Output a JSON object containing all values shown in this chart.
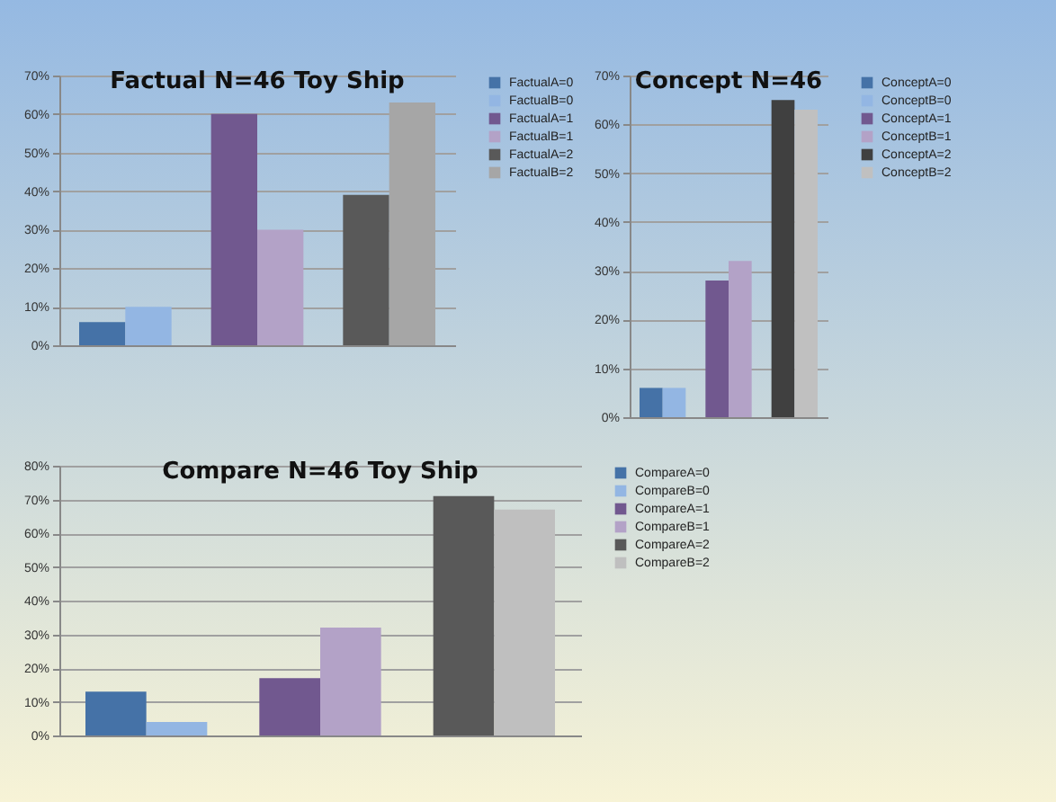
{
  "chart_data": [
    {
      "type": "bar",
      "title": "Factual  N=46 Toy Ship",
      "categories": [
        null,
        null,
        null
      ],
      "ylim": [
        0,
        70
      ],
      "yticks": [
        {
          "value": 0,
          "label": "0%"
        },
        {
          "value": 10,
          "label": "10%"
        },
        {
          "value": 20,
          "label": "20%"
        },
        {
          "value": 30,
          "label": "30%"
        },
        {
          "value": 40,
          "label": "40%"
        },
        {
          "value": 50,
          "label": "50%"
        },
        {
          "value": 60,
          "label": "60%"
        },
        {
          "value": 70,
          "label": "70%"
        }
      ],
      "grid": "y",
      "legend": "right",
      "series": [
        {
          "name": "FactualA=0",
          "color": "#4572a7",
          "values": [
            6,
            null,
            null
          ]
        },
        {
          "name": "FactualB=0",
          "color": "#93b6e3",
          "values": [
            10,
            null,
            null
          ]
        },
        {
          "name": "FactualA=1",
          "color": "#71588f",
          "values": [
            null,
            60,
            null
          ]
        },
        {
          "name": "FactualB=1",
          "color": "#b3a2c7",
          "values": [
            null,
            30,
            null
          ]
        },
        {
          "name": "FactualA=2",
          "color": "#595959",
          "values": [
            null,
            null,
            39
          ]
        },
        {
          "name": "FactualB=2",
          "color": "#a6a6a6",
          "values": [
            null,
            null,
            63
          ]
        }
      ]
    },
    {
      "type": "bar",
      "title": "Concept N=46",
      "categories": [
        null,
        null,
        null
      ],
      "ylim": [
        0,
        70
      ],
      "yticks": [
        {
          "value": 0,
          "label": "0%"
        },
        {
          "value": 10,
          "label": "10%"
        },
        {
          "value": 20,
          "label": "20%"
        },
        {
          "value": 30,
          "label": "30%"
        },
        {
          "value": 40,
          "label": "40%"
        },
        {
          "value": 50,
          "label": "50%"
        },
        {
          "value": 60,
          "label": "60%"
        },
        {
          "value": 70,
          "label": "70%"
        }
      ],
      "grid": "y",
      "legend": "right",
      "series": [
        {
          "name": "ConceptA=0",
          "color": "#4572a7",
          "values": [
            6,
            null,
            null
          ]
        },
        {
          "name": "ConceptB=0",
          "color": "#93b6e3",
          "values": [
            6,
            null,
            null
          ]
        },
        {
          "name": "ConceptA=1",
          "color": "#71588f",
          "values": [
            null,
            28,
            null
          ]
        },
        {
          "name": "ConceptB=1",
          "color": "#b3a2c7",
          "values": [
            null,
            32,
            null
          ]
        },
        {
          "name": "ConceptA=2",
          "color": "#404040",
          "values": [
            null,
            null,
            65
          ]
        },
        {
          "name": "ConceptB=2",
          "color": "#c0c0c0",
          "values": [
            null,
            null,
            63
          ]
        }
      ]
    },
    {
      "type": "bar",
      "title": "Compare N=46 Toy Ship",
      "categories": [
        null,
        null,
        null
      ],
      "ylim": [
        0,
        80
      ],
      "yticks": [
        {
          "value": 0,
          "label": "0%"
        },
        {
          "value": 10,
          "label": "10%"
        },
        {
          "value": 20,
          "label": "20%"
        },
        {
          "value": 30,
          "label": "30%"
        },
        {
          "value": 40,
          "label": "40%"
        },
        {
          "value": 50,
          "label": "50%"
        },
        {
          "value": 60,
          "label": "60%"
        },
        {
          "value": 70,
          "label": "70%"
        },
        {
          "value": 80,
          "label": "80%"
        }
      ],
      "grid": "y",
      "legend": "right",
      "series": [
        {
          "name": "CompareA=0",
          "color": "#4572a7",
          "values": [
            13,
            null,
            null
          ]
        },
        {
          "name": "CompareB=0",
          "color": "#93b6e3",
          "values": [
            4,
            null,
            null
          ]
        },
        {
          "name": "CompareA=1",
          "color": "#71588f",
          "values": [
            null,
            17,
            null
          ]
        },
        {
          "name": "CompareB=1",
          "color": "#b3a2c7",
          "values": [
            null,
            32,
            null
          ]
        },
        {
          "name": "CompareA=2",
          "color": "#595959",
          "values": [
            null,
            null,
            71
          ]
        },
        {
          "name": "CompareB=2",
          "color": "#bfbfbf",
          "values": [
            null,
            null,
            67
          ]
        }
      ]
    }
  ]
}
